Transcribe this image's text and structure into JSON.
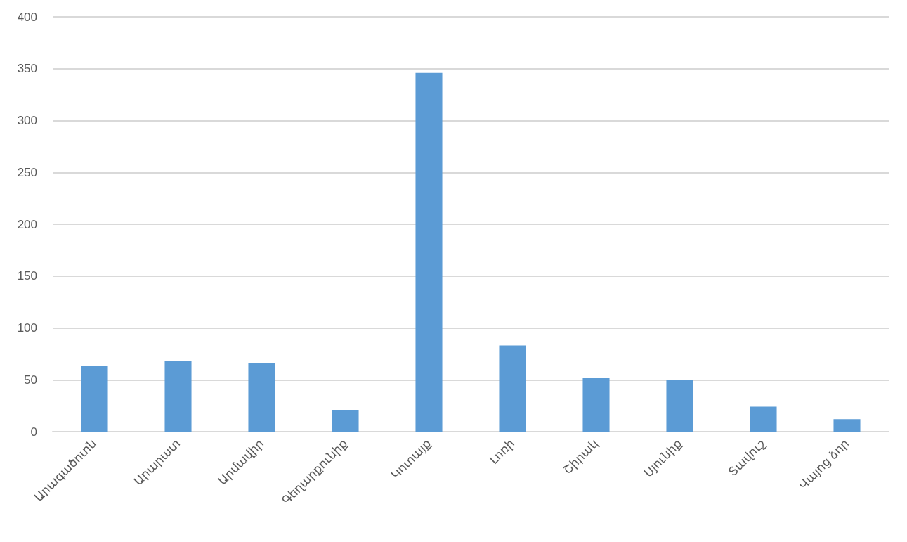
{
  "chart_data": {
    "type": "bar",
    "categories": [
      "Արագածոտն",
      "Արարատ",
      "Արմավիր",
      "Գեղարքունիք",
      "Կոտայք",
      "Լոռի",
      "Շիրակ",
      "Սյունիք",
      "Տավուշ",
      "Վայոց ձոր"
    ],
    "values": [
      63,
      68,
      66,
      21,
      346,
      83,
      52,
      50,
      24,
      12
    ],
    "color": "#5b9bd5",
    "ylim": [
      0,
      400
    ],
    "yticks": [
      0,
      50,
      100,
      150,
      200,
      250,
      300,
      350,
      400
    ],
    "grid": "y"
  }
}
